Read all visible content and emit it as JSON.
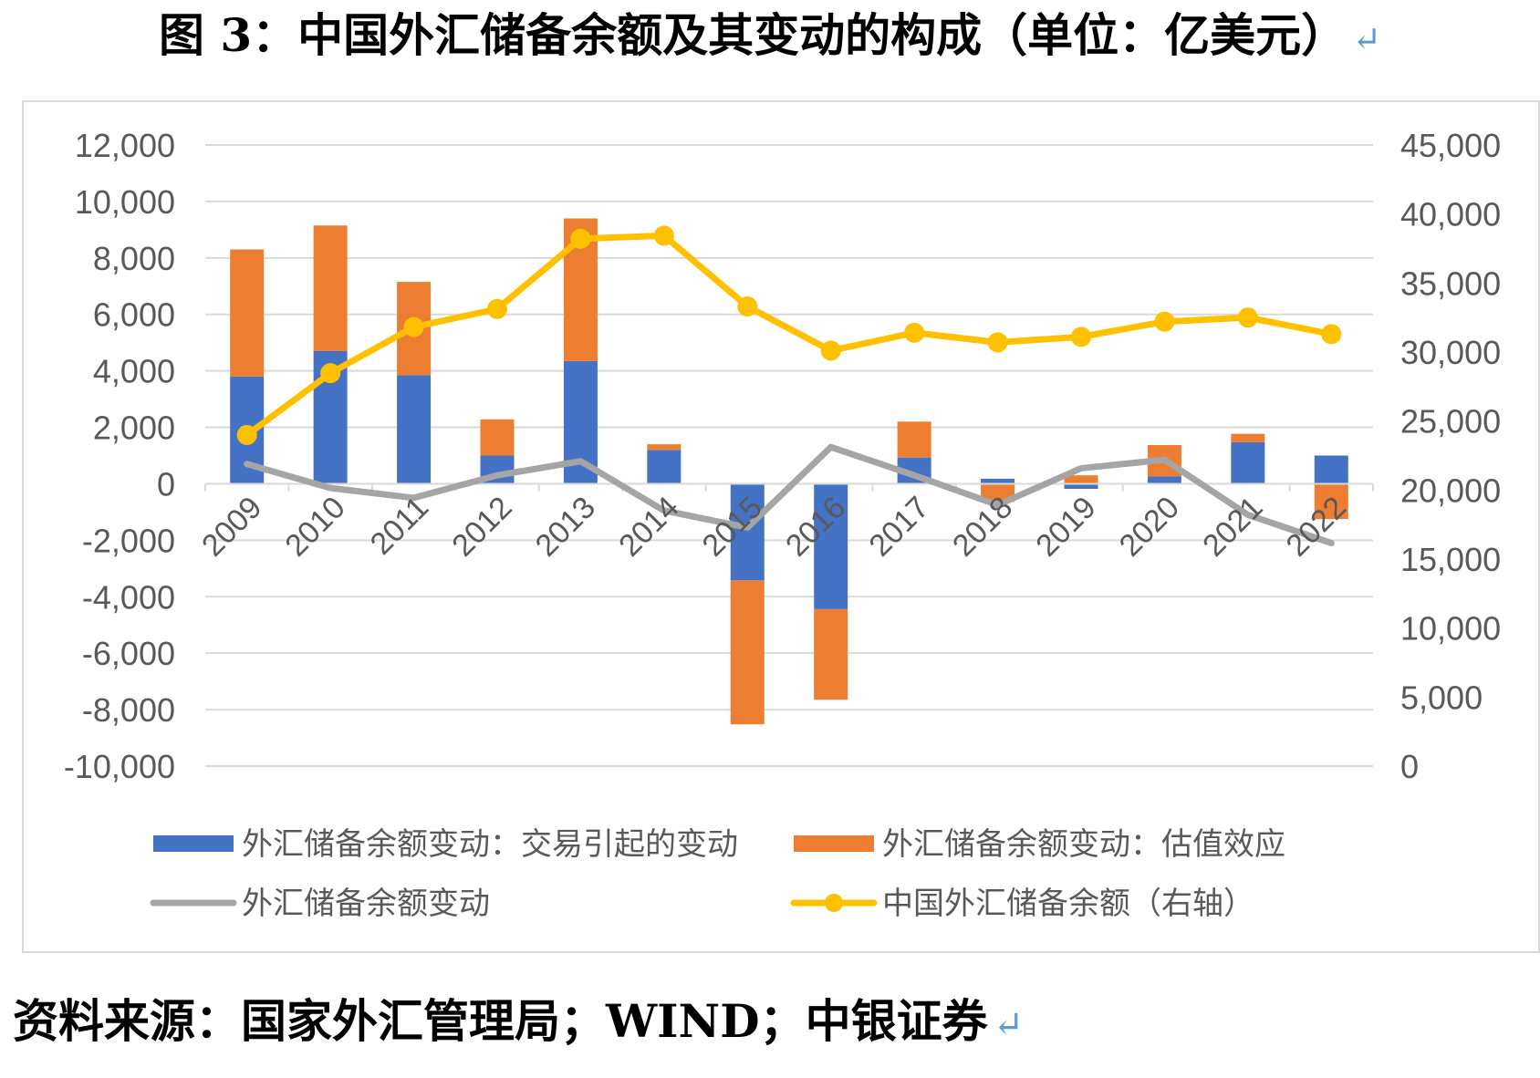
{
  "title": "图 3：中国外汇储备余额及其变动的构成（单位：亿美元）",
  "title_mark": "↵",
  "source": "资料来源：国家外汇管理局；WIND；中银证券",
  "source_mark": "↵",
  "colors": {
    "trade": "#4472c4",
    "valuation": "#ed7d31",
    "change": "#a5a5a5",
    "balance": "#ffc000",
    "grid": "#d9d9d9",
    "axis_text": "#595959"
  },
  "chart_data": {
    "type": "bar",
    "categories": [
      "2009",
      "2010",
      "2011",
      "2012",
      "2013",
      "2014",
      "2015",
      "2016",
      "2017",
      "2018",
      "2019",
      "2020",
      "2021",
      "2022"
    ],
    "series": [
      {
        "name": "外汇储备余额变动：交易引起的变动",
        "type": "bar",
        "axis": "left",
        "values": [
          3800,
          4700,
          3850,
          1000,
          4350,
          1200,
          -3420,
          -4440,
          930,
          180,
          -180,
          260,
          1470,
          1000
        ]
      },
      {
        "name": "外汇储备余额变动：估值效应",
        "type": "bar",
        "axis": "left",
        "values": [
          4500,
          4450,
          3300,
          1280,
          5050,
          200,
          -5100,
          -3210,
          1270,
          -640,
          300,
          1110,
          300,
          -1250
        ]
      },
      {
        "name": "外汇储备余额变动",
        "type": "line",
        "axis": "left",
        "values": [
          700,
          -150,
          -500,
          300,
          800,
          -950,
          -1550,
          1300,
          300,
          -750,
          550,
          850,
          -1100,
          -2100
        ]
      },
      {
        "name": "中国外汇储备余额（右轴）",
        "type": "line",
        "axis": "right",
        "values": [
          23990,
          28470,
          31810,
          33120,
          38210,
          38430,
          33300,
          30100,
          31400,
          30700,
          31100,
          32200,
          32500,
          31300
        ]
      }
    ],
    "y_left": {
      "min": -10000,
      "max": 12000,
      "step": 2000,
      "ticks": [
        "12,000",
        "10,000",
        "8,000",
        "6,000",
        "4,000",
        "2,000",
        "0",
        "-2,000",
        "-4,000",
        "-6,000",
        "-8,000",
        "-10,000"
      ]
    },
    "y_right": {
      "min": 0,
      "max": 45000,
      "step": 5000,
      "ticks": [
        "45,000",
        "40,000",
        "35,000",
        "30,000",
        "25,000",
        "20,000",
        "15,000",
        "10,000",
        "5,000",
        "0"
      ]
    },
    "grid": true,
    "legend": "bottom"
  }
}
